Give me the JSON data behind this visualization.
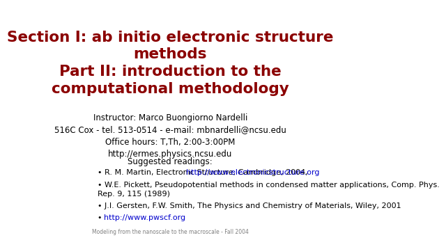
{
  "background_color": "#ffffff",
  "title_line1": "Section I: ab initio electronic structure",
  "title_line2": "methods",
  "title_line3": "Part II: introduction to the",
  "title_line4": "computational methodology",
  "title_color": "#8B0000",
  "title_fontsize": 15.5,
  "title_fontstyle": "bold",
  "instructor_lines": [
    "Instructor: Marco Buongiorno Nardelli",
    "516C Cox - tel. 513-0514 - e-mail: mbnardelli@ncsu.edu",
    "Office hours: T,Th, 2:00-3:00PM",
    "http://ermes.physics.ncsu.edu"
  ],
  "instructor_fontsize": 8.5,
  "instructor_color": "#000000",
  "suggested_heading": "Suggested readings:",
  "suggested_fontsize": 8.5,
  "suggested_color": "#000000",
  "readings": [
    {
      "bullet": "• R. M. Martin, Electronic Structure, Cambridge, 2004, ",
      "link": "http://www.electronicstructure.org",
      "after": ""
    },
    {
      "bullet": "• W.E. Pickett, Pseudopotential methods in condensed matter applications, Comp. Phys.\nRep. 9, 115 (1989)",
      "link": "",
      "after": ""
    },
    {
      "bullet": "• J.I. Gersten, F.W. Smith, The Physics and Chemistry of Materials, Wiley, 2001",
      "link": "",
      "after": ""
    },
    {
      "bullet": "• ",
      "link": "http://www.pwscf.org",
      "after": ""
    }
  ],
  "readings_fontsize": 8.0,
  "readings_color": "#000000",
  "link_color": "#0000CC",
  "footer": "Modeling from the nanoscale to the macroscale - Fall 2004",
  "footer_fontsize": 5.5,
  "footer_color": "#808080"
}
